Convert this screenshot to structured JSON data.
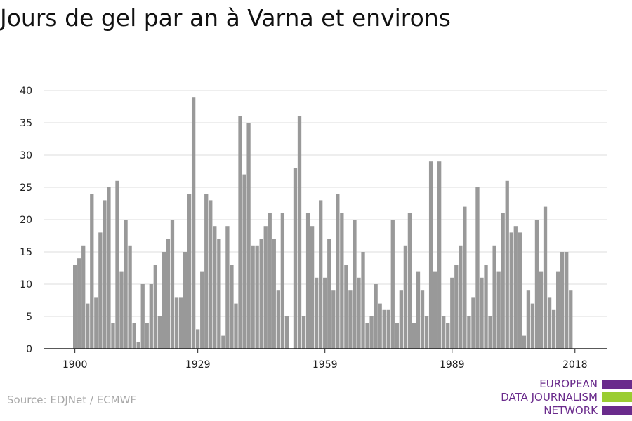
{
  "title": "Jours de gel par an à Varna et environs",
  "source": "Source: EDJNet / ECMWF",
  "logo": {
    "line1": "EUROPEAN",
    "line2": "DATA JOURNALISM",
    "line3": "NETWORK"
  },
  "colors": {
    "bar": "#999999",
    "grid": "#dddddd",
    "axis": "#222222",
    "logo_purple": "#6a2b8c",
    "logo_green": "#9acd32"
  },
  "chart_data": {
    "type": "bar",
    "title": "Jours de gel par an à Varna et environs",
    "xlabel": "",
    "ylabel": "",
    "ylim": [
      0,
      40
    ],
    "yticks": [
      0,
      5,
      10,
      15,
      20,
      25,
      30,
      35,
      40
    ],
    "xticks": [
      1900,
      1929,
      1959,
      1989,
      2018
    ],
    "grid": true,
    "legend": "none",
    "categories": [
      1900,
      1901,
      1902,
      1903,
      1904,
      1905,
      1906,
      1907,
      1908,
      1909,
      1910,
      1911,
      1912,
      1913,
      1914,
      1915,
      1916,
      1917,
      1918,
      1919,
      1920,
      1921,
      1922,
      1923,
      1924,
      1925,
      1926,
      1927,
      1928,
      1929,
      1930,
      1931,
      1932,
      1933,
      1934,
      1935,
      1936,
      1937,
      1938,
      1939,
      1940,
      1941,
      1942,
      1943,
      1944,
      1945,
      1946,
      1947,
      1948,
      1949,
      1950,
      1951,
      1952,
      1953,
      1954,
      1955,
      1956,
      1957,
      1958,
      1959,
      1960,
      1961,
      1962,
      1963,
      1964,
      1965,
      1966,
      1967,
      1968,
      1969,
      1970,
      1971,
      1972,
      1973,
      1974,
      1975,
      1976,
      1977,
      1978,
      1979,
      1980,
      1981,
      1982,
      1983,
      1984,
      1985,
      1986,
      1987,
      1988,
      1989,
      1990,
      1991,
      1992,
      1993,
      1994,
      1995,
      1996,
      1997,
      1998,
      1999,
      2000,
      2001,
      2002,
      2003,
      2004,
      2005,
      2006,
      2007,
      2008,
      2009,
      2010,
      2011,
      2012,
      2013,
      2014,
      2015,
      2016,
      2017,
      2018
    ],
    "values": [
      13,
      14,
      16,
      7,
      24,
      8,
      18,
      23,
      25,
      4,
      26,
      12,
      20,
      16,
      4,
      1,
      10,
      4,
      10,
      13,
      5,
      15,
      17,
      20,
      8,
      8,
      15,
      24,
      39,
      3,
      12,
      24,
      23,
      19,
      17,
      2,
      19,
      13,
      7,
      36,
      27,
      35,
      16,
      16,
      17,
      19,
      21,
      17,
      9,
      21,
      5,
      0,
      28,
      36,
      5,
      21,
      19,
      11,
      23,
      11,
      17,
      9,
      24,
      21,
      13,
      9,
      20,
      11,
      15,
      4,
      5,
      10,
      7,
      6,
      6,
      20,
      4,
      9,
      16,
      21,
      4,
      12,
      9,
      5,
      29,
      12,
      29,
      5,
      4,
      11,
      13,
      16,
      22,
      5,
      8,
      25,
      11,
      13,
      5,
      16,
      12,
      21,
      26,
      18,
      19,
      18,
      2,
      9,
      7,
      20,
      12,
      22,
      8,
      6,
      12,
      15,
      15,
      9,
      0
    ]
  }
}
